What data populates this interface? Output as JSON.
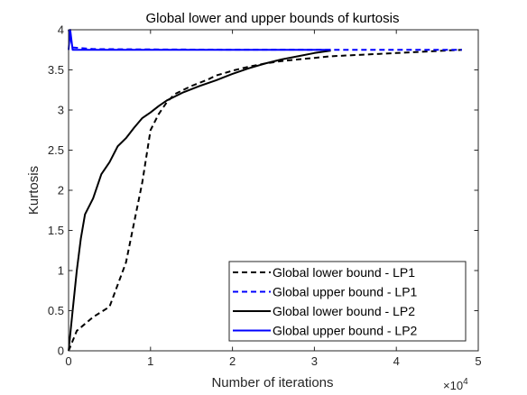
{
  "chart_data": {
    "type": "line",
    "title": "Global lower and upper bounds of kurtosis",
    "xlabel": "Number of iterations",
    "ylabel": "Kurtosis",
    "x_multiplier_base": "×10",
    "x_multiplier_exp": "4",
    "xlim": [
      0,
      5
    ],
    "ylim": [
      0,
      4
    ],
    "x_ticks": [
      "0",
      "1",
      "2",
      "3",
      "4",
      "5"
    ],
    "y_ticks": [
      "0",
      "0.5",
      "1",
      "1.5",
      "2",
      "2.5",
      "3",
      "3.5",
      "4"
    ],
    "grid": false,
    "legend_position": "bottom-right",
    "series": [
      {
        "name": "Global lower bound - LP1",
        "color": "#000000",
        "dash": "dashed",
        "x": [
          0,
          0.1,
          0.3,
          0.5,
          0.7,
          0.9,
          1.0,
          1.1,
          1.2,
          1.3,
          1.5,
          1.7,
          1.8,
          1.9,
          2.0,
          2.2,
          2.4,
          2.6,
          2.8,
          3.0,
          3.2,
          3.4,
          3.6,
          3.8,
          4.0,
          4.2,
          4.4,
          4.6,
          4.8
        ],
        "y": [
          0,
          0.25,
          0.42,
          0.55,
          1.1,
          2.1,
          2.75,
          2.95,
          3.1,
          3.2,
          3.3,
          3.38,
          3.43,
          3.46,
          3.49,
          3.54,
          3.58,
          3.61,
          3.63,
          3.65,
          3.67,
          3.68,
          3.69,
          3.7,
          3.71,
          3.72,
          3.73,
          3.74,
          3.75
        ]
      },
      {
        "name": "Global upper bound - LP1",
        "color": "#0000ff",
        "dash": "dashed",
        "x": [
          0,
          0.05,
          0.3,
          1.0,
          2.0,
          3.0,
          4.0,
          4.8
        ],
        "y": [
          4.0,
          3.78,
          3.76,
          3.755,
          3.752,
          3.751,
          3.75,
          3.75
        ]
      },
      {
        "name": "Global lower bound - LP2",
        "color": "#000000",
        "dash": "solid",
        "x": [
          0,
          0.05,
          0.1,
          0.15,
          0.2,
          0.25,
          0.3,
          0.4,
          0.5,
          0.6,
          0.7,
          0.8,
          0.9,
          1.0,
          1.1,
          1.2,
          1.4,
          1.6,
          1.8,
          2.0,
          2.2,
          2.4,
          2.6,
          2.8,
          3.0,
          3.2
        ],
        "y": [
          0,
          0.5,
          1.0,
          1.4,
          1.7,
          1.8,
          1.9,
          2.2,
          2.35,
          2.55,
          2.65,
          2.78,
          2.9,
          2.97,
          3.05,
          3.12,
          3.22,
          3.3,
          3.37,
          3.45,
          3.52,
          3.58,
          3.63,
          3.67,
          3.71,
          3.74
        ]
      },
      {
        "name": "Global upper bound - LP2",
        "color": "#0000ff",
        "dash": "solid",
        "x": [
          0,
          0.02,
          0.05,
          1.0,
          2.0,
          3.0,
          3.2
        ],
        "y": [
          3.75,
          4.0,
          3.75,
          3.75,
          3.75,
          3.75,
          3.75
        ]
      }
    ]
  }
}
